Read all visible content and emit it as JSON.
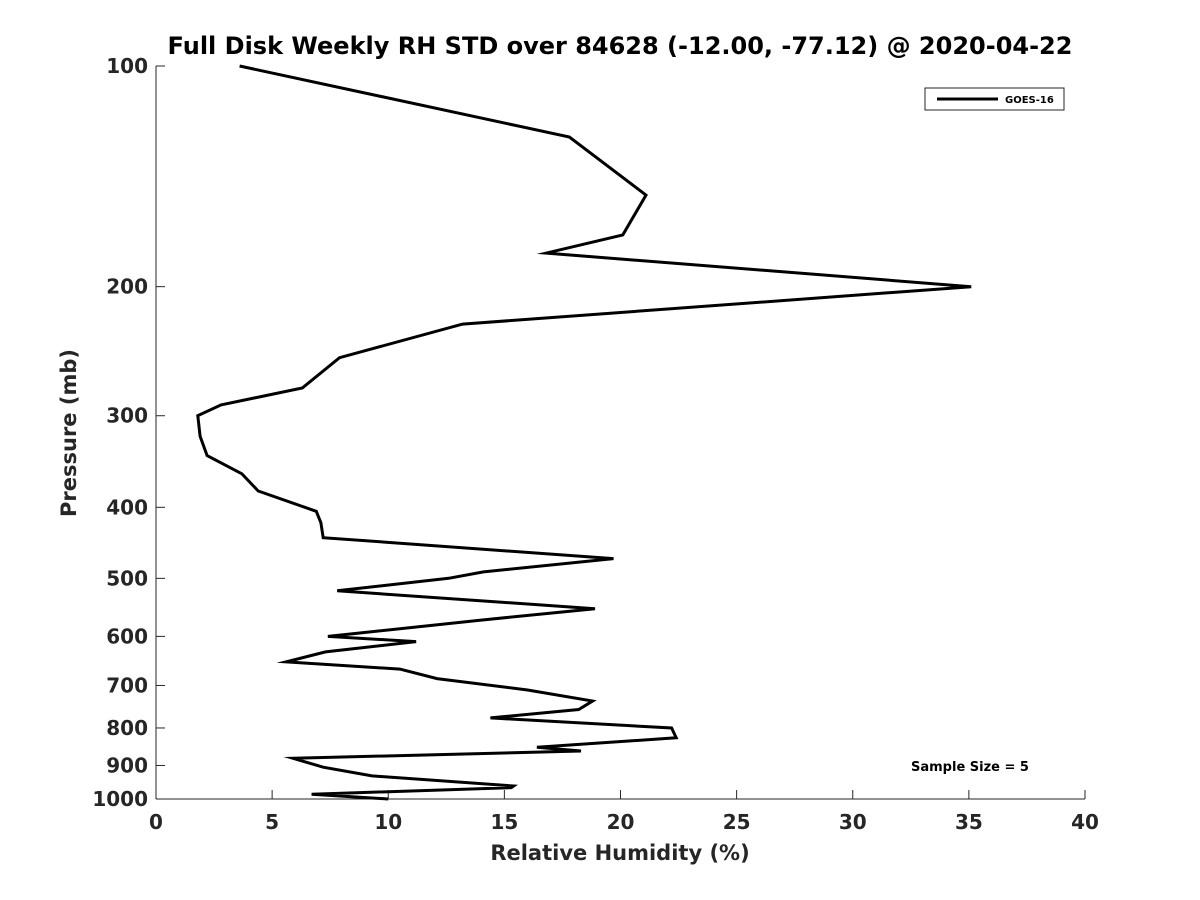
{
  "chart_data": {
    "type": "line",
    "title": "Full Disk Weekly RH STD over 84628 (-12.00, -77.12) @ 2020-04-22",
    "xlabel": "Relative Humidity (%)",
    "ylabel": "Pressure (mb)",
    "xlim": [
      0,
      40
    ],
    "ylim": [
      100,
      1000
    ],
    "y_scale": "log",
    "y_reversed": true,
    "xticks": [
      "0",
      "5",
      "10",
      "15",
      "20",
      "25",
      "30",
      "35",
      "40"
    ],
    "yticks": [
      "100",
      "200",
      "300",
      "400",
      "500",
      "600",
      "700",
      "800",
      "900",
      "1000"
    ],
    "grid": false,
    "legend_position": "top-right",
    "annotation": "Sample Size = 5",
    "series": [
      {
        "name": "GOES-16",
        "color": "#000000",
        "x": [
          3.6,
          17.8,
          21.1,
          20.1,
          16.8,
          35.1,
          13.2,
          7.9,
          6.3,
          2.8,
          1.8,
          1.9,
          2.2,
          3.7,
          4.4,
          6.9,
          7.1,
          7.2,
          19.7,
          14.1,
          12.6,
          7.8,
          18.9,
          14.0,
          7.4,
          11.2,
          7.3,
          5.6,
          10.5,
          12.1,
          16.0,
          18.8,
          18.2,
          14.4,
          22.2,
          22.4,
          16.4,
          18.3,
          5.9,
          7.2,
          9.3,
          15.4,
          15.3,
          6.7,
          10.0
        ],
        "y": [
          100,
          125,
          150,
          170,
          180,
          200,
          225,
          250,
          275,
          290,
          300,
          320,
          340,
          360,
          380,
          405,
          420,
          440,
          470,
          490,
          500,
          520,
          550,
          570,
          600,
          610,
          630,
          650,
          665,
          685,
          710,
          735,
          755,
          775,
          800,
          825,
          850,
          860,
          880,
          905,
          930,
          960,
          965,
          985,
          1000
        ]
      }
    ]
  }
}
